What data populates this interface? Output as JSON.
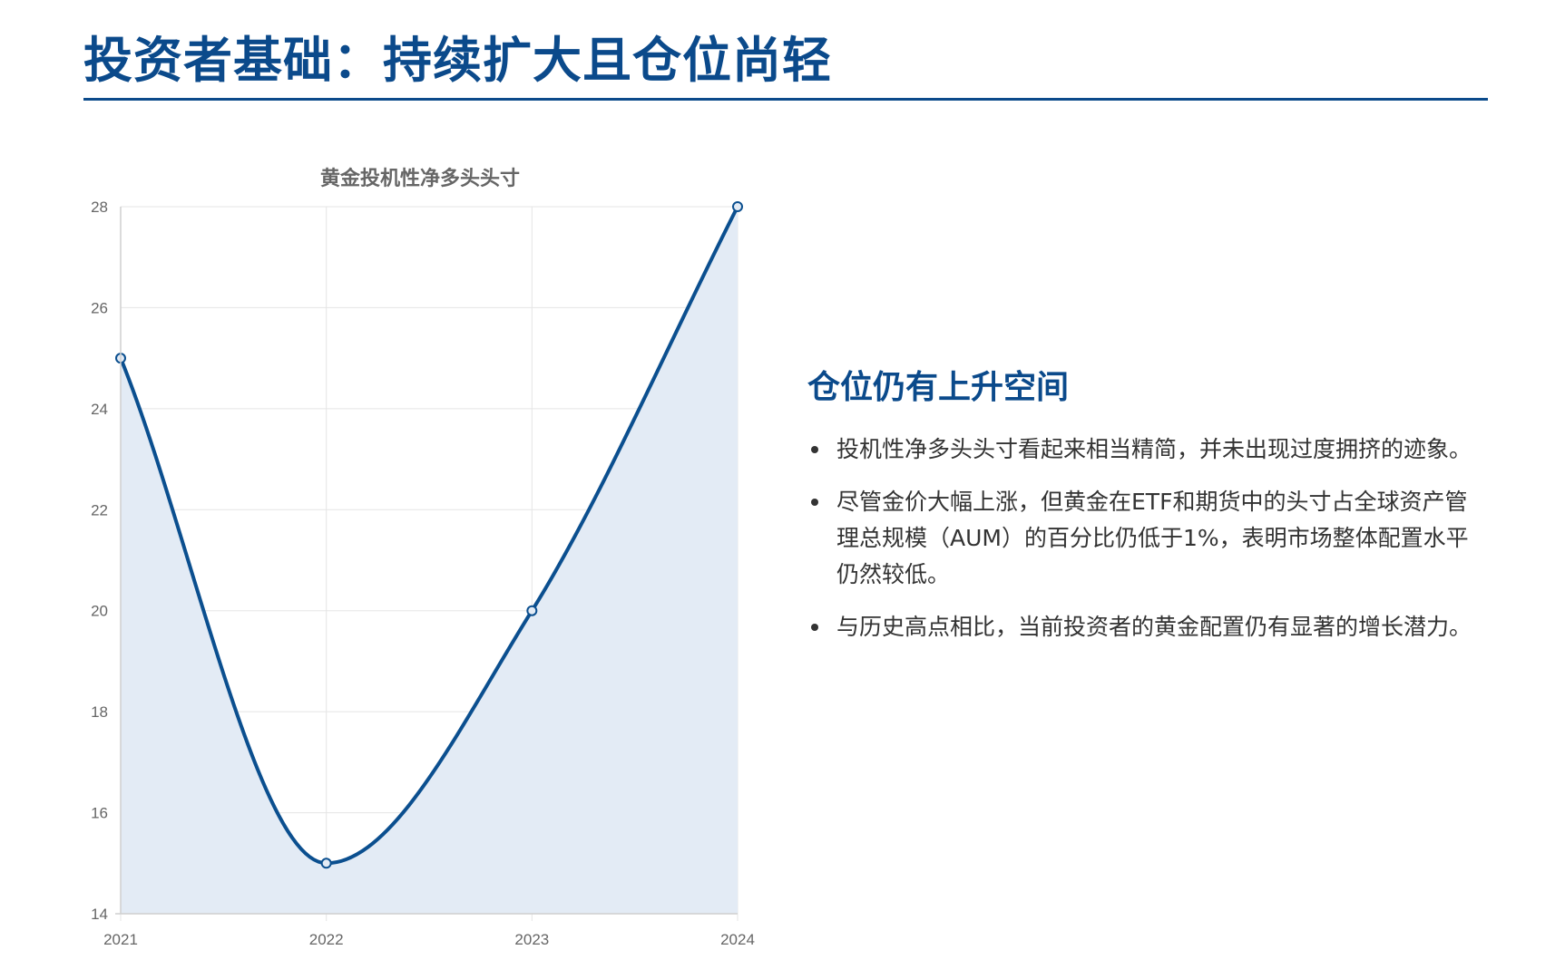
{
  "header": {
    "title": "投资者基础：持续扩大且仓位尚轻"
  },
  "chart_data": {
    "type": "line",
    "title": "黄金投机性净多头头寸",
    "categories": [
      "2021",
      "2022",
      "2023",
      "2024"
    ],
    "series": [
      {
        "values": [
          25,
          15,
          20,
          28
        ]
      }
    ],
    "ylim": [
      14,
      28
    ],
    "yticks": [
      14,
      16,
      18,
      20,
      22,
      24,
      26,
      28
    ],
    "xlabel": "",
    "ylabel": "",
    "grid": true,
    "area_fill": true,
    "smooth": true,
    "colors": {
      "line": "#0b4f8f",
      "fill": "#e3ebf5",
      "grid": "#e5e5e5",
      "axis_text": "#666666",
      "title_text": "#666666"
    }
  },
  "panel": {
    "heading": "仓位仍有上升空间",
    "bullets": [
      "投机性净多头头寸看起来相当精简，并未出现过度拥挤的迹象。",
      "尽管金价大幅上涨，但黄金在ETF和期货中的头寸占全球资产管理总规模（AUM）的百分比仍低于1%，表明市场整体配置水平仍然较低。",
      "与历史高点相比，当前投资者的黄金配置仍有显著的增长潜力。"
    ]
  }
}
